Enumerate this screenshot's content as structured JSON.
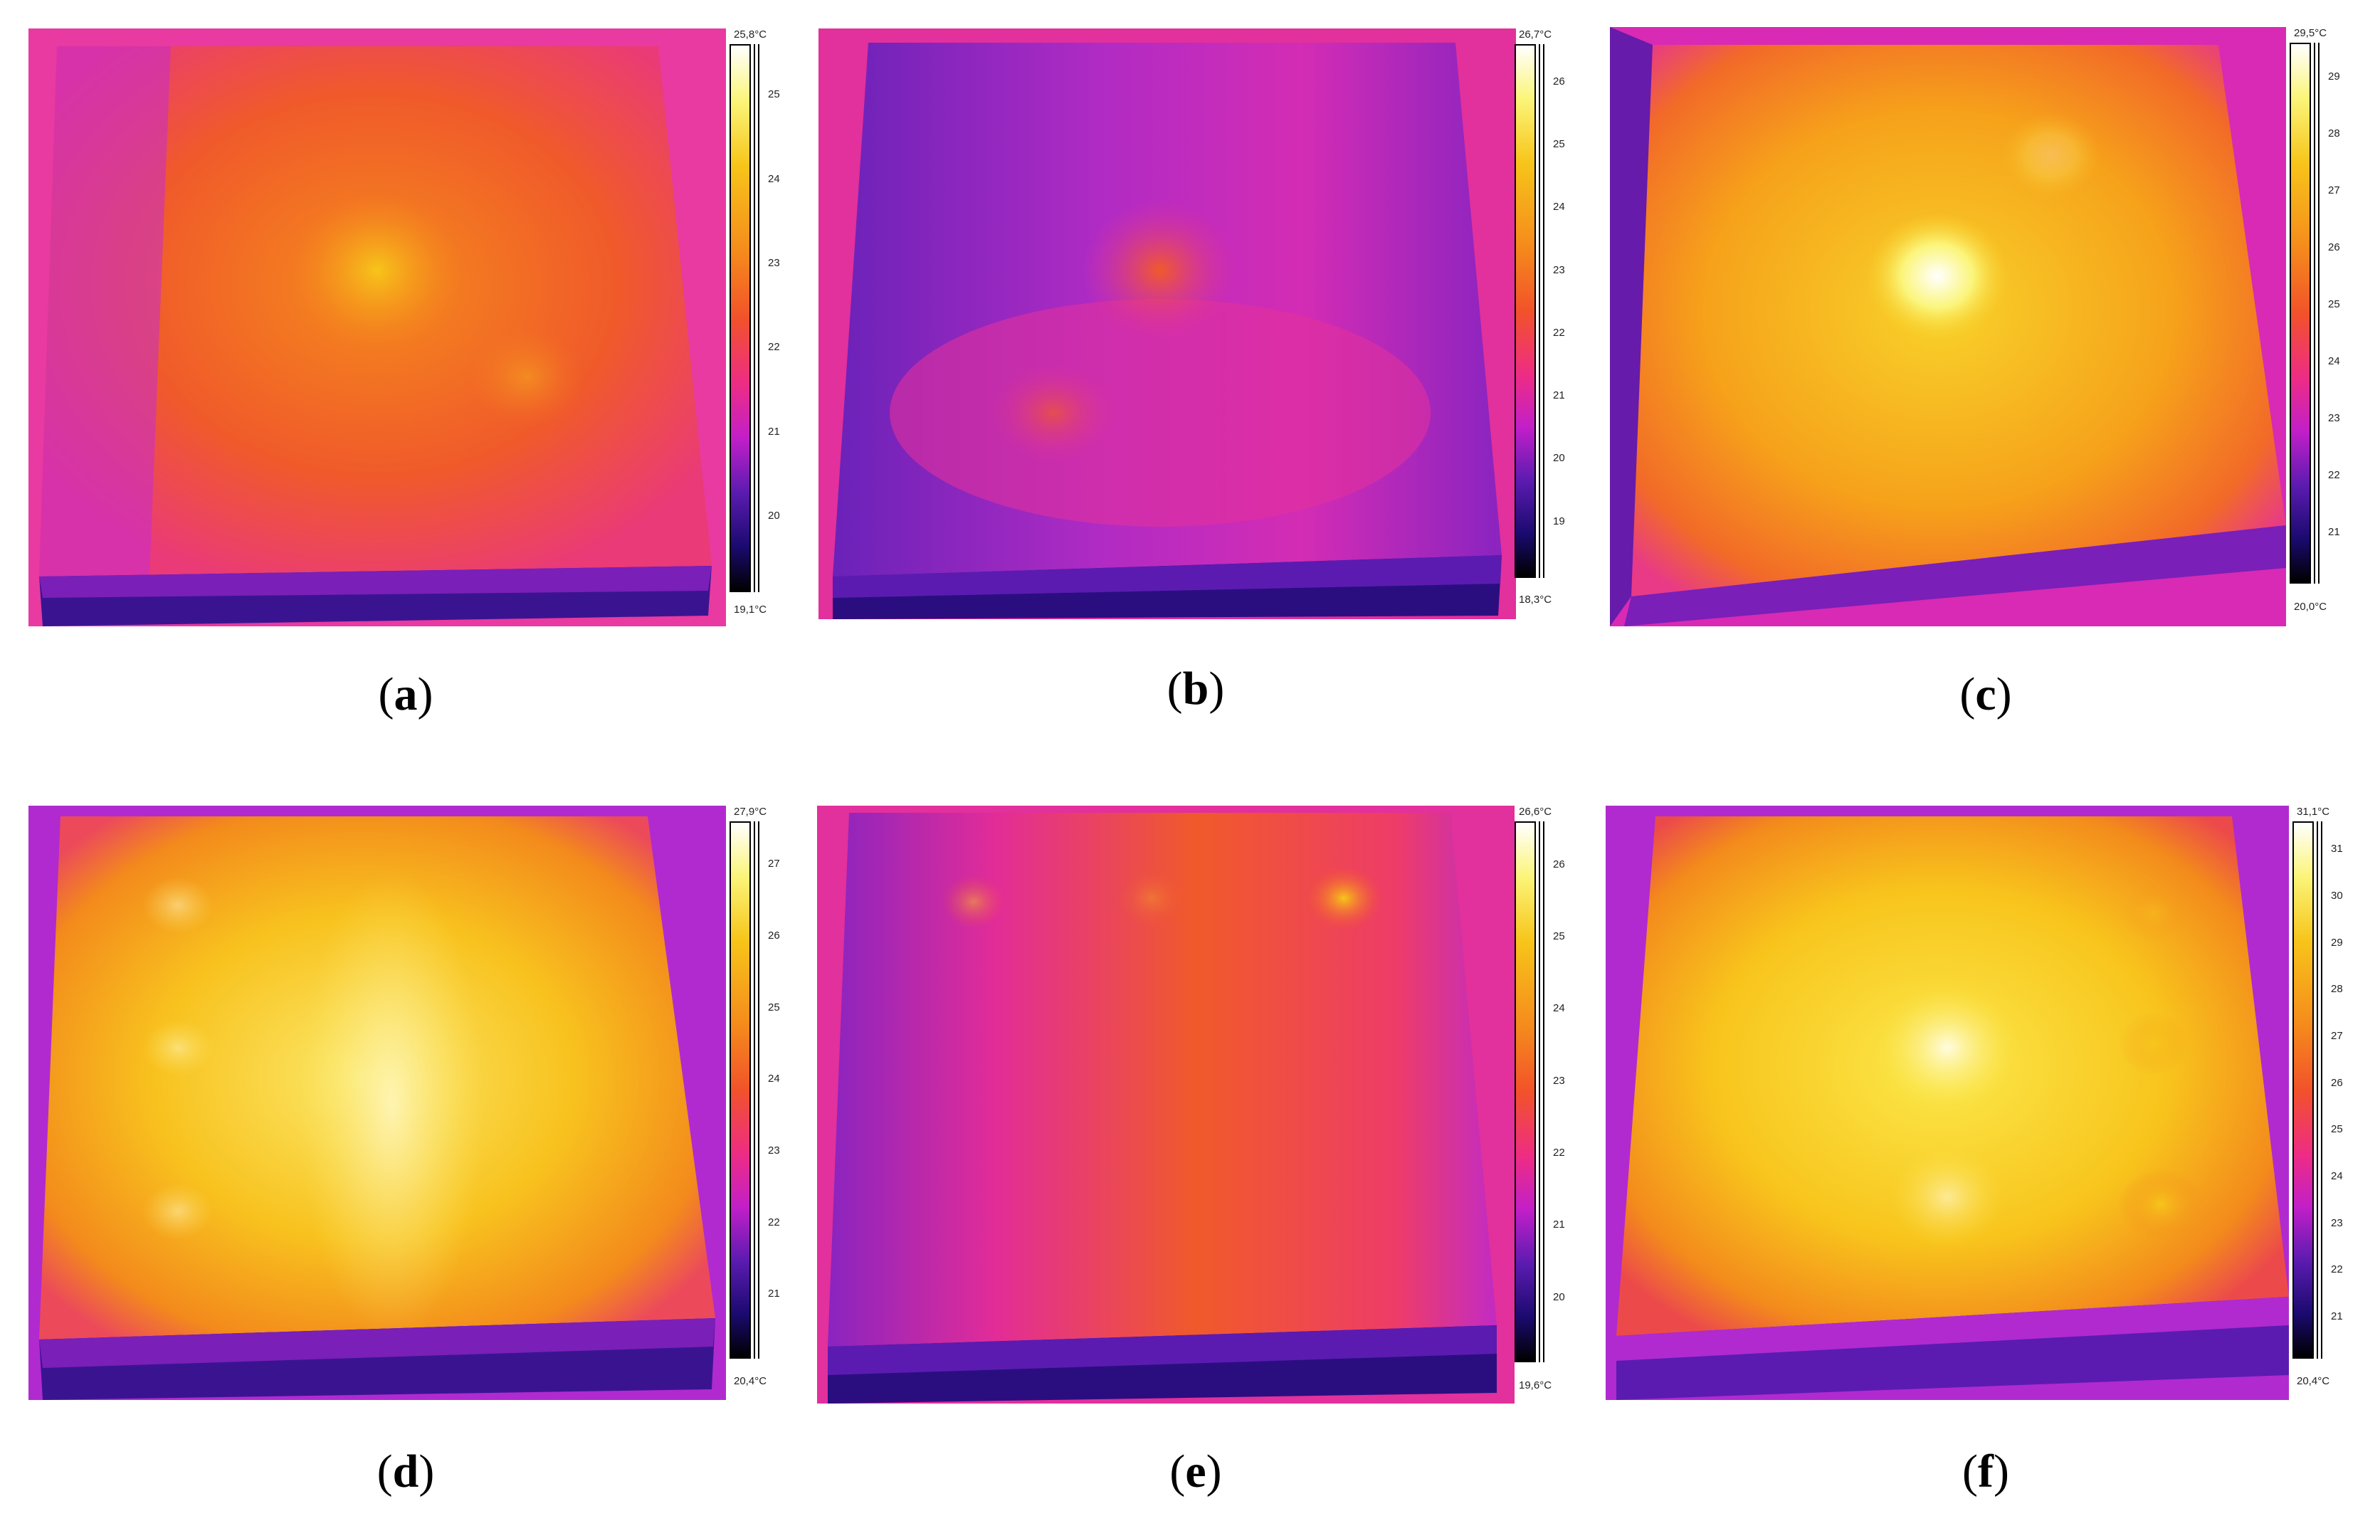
{
  "panels": [
    {
      "id": "a",
      "label_letter": "a",
      "scale_max": "25,8°C",
      "scale_min": "19,1°C",
      "ticks": [
        "25",
        "24",
        "23",
        "22",
        "21",
        "20"
      ]
    },
    {
      "id": "b",
      "label_letter": "b",
      "scale_max": "26,7°C",
      "scale_min": "18,3°C",
      "ticks": [
        "26",
        "25",
        "24",
        "23",
        "22",
        "21",
        "20",
        "19"
      ]
    },
    {
      "id": "c",
      "label_letter": "c",
      "scale_max": "29,5°C",
      "scale_min": "20,0°C",
      "ticks": [
        "29",
        "28",
        "27",
        "26",
        "25",
        "24",
        "23",
        "22",
        "21"
      ]
    },
    {
      "id": "d",
      "label_letter": "d",
      "scale_max": "27,9°C",
      "scale_min": "20,4°C",
      "ticks": [
        "27",
        "26",
        "25",
        "24",
        "23",
        "22",
        "21"
      ]
    },
    {
      "id": "e",
      "label_letter": "e",
      "scale_max": "26,6°C",
      "scale_min": "19,6°C",
      "ticks": [
        "26",
        "25",
        "24",
        "23",
        "22",
        "21",
        "20"
      ]
    },
    {
      "id": "f",
      "label_letter": "f",
      "scale_max": "31,1°C",
      "scale_min": "20,4°C",
      "ticks": [
        "31",
        "30",
        "29",
        "28",
        "27",
        "26",
        "25",
        "24",
        "23",
        "22",
        "21"
      ]
    }
  ],
  "colors": {
    "palette": [
      "#000000",
      "#1a0a6e",
      "#5b1bb0",
      "#c11fc8",
      "#ee2c84",
      "#f2522a",
      "#f58a1c",
      "#f7c51a",
      "#fbf57a",
      "#ffffff"
    ]
  }
}
